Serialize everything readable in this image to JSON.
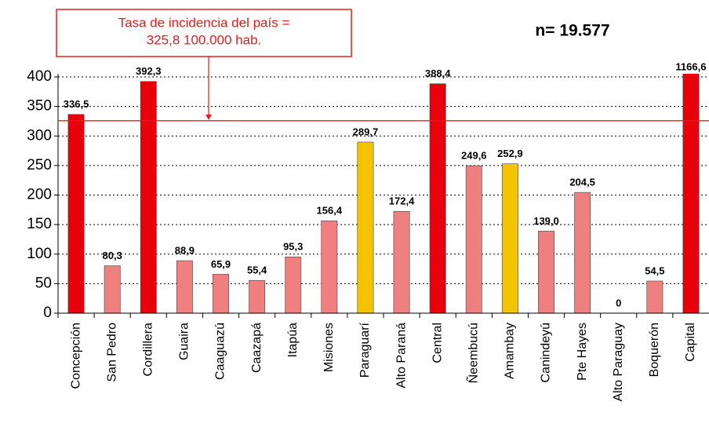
{
  "chart_data": {
    "type": "bar",
    "subtitle": "n= 19.577",
    "annotation": {
      "lines": [
        "Tasa de incidencia del país =",
        "325,8 100.000 hab."
      ],
      "value": 325.8,
      "color": "#e02020"
    },
    "categories": [
      "Concepción",
      "San Pedro",
      "Cordillera",
      "Guaira",
      "Caaguazú",
      "Caazapá",
      "Itapúa",
      "Misiones",
      "Paraguarí",
      "Alto Paraná",
      "Central",
      "Ñeembucú",
      "Amambay",
      "Canindeyú",
      "Pte Hayes",
      "Alto Paraguay",
      "Boquerón",
      "Capital"
    ],
    "values": [
      336.5,
      80.3,
      392.3,
      88.9,
      65.9,
      55.4,
      95.3,
      156.4,
      289.7,
      172.4,
      388.4,
      249.6,
      252.9,
      139.0,
      204.5,
      0,
      54.5,
      1166.6
    ],
    "value_labels": [
      "336,5",
      "80,3",
      "392,3",
      "88,9",
      "65,9",
      "55,4",
      "95,3",
      "156,4",
      "289,7",
      "172,4",
      "388,4",
      "249,6",
      "252,9",
      "139,0",
      "204,5",
      "0",
      "54,5",
      "1166,6"
    ],
    "colors": [
      "#e8000b",
      "#f08080",
      "#e8000b",
      "#f08080",
      "#f08080",
      "#f08080",
      "#f08080",
      "#f08080",
      "#f5c400",
      "#f08080",
      "#e8000b",
      "#f08080",
      "#f5c400",
      "#f08080",
      "#f08080",
      "#f08080",
      "#f08080",
      "#e8000b"
    ],
    "ylim": [
      0,
      405
    ],
    "yticks": [
      0,
      50,
      100,
      150,
      200,
      250,
      300,
      350,
      400
    ],
    "grid": true
  }
}
